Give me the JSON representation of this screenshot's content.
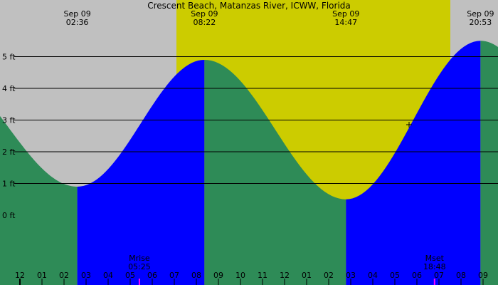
{
  "chart_data": {
    "type": "area",
    "title": "Crescent Beach, Matanzas River, ICWW, Florida",
    "y_unit": "ft",
    "y_ticks": [
      "5 ft",
      "4 ft",
      "3 ft",
      "2 ft",
      "1 ft",
      "0 ft"
    ],
    "x_tick_labels": [
      "1",
      "12",
      "01",
      "02",
      "03",
      "04",
      "05",
      "06",
      "07",
      "08",
      "09",
      "10",
      "11",
      "12",
      "01",
      "02",
      "03",
      "04",
      "05",
      "06",
      "07",
      "08",
      "09"
    ],
    "tide_points": [
      {
        "date": "Sep 09",
        "time": "02:36",
        "type": "low",
        "height_ft": 0.9
      },
      {
        "date": "Sep 09",
        "time": "08:22",
        "type": "high",
        "height_ft": 4.9
      },
      {
        "date": "Sep 09",
        "time": "14:47",
        "type": "low",
        "height_ft": 0.5
      },
      {
        "date": "Sep 09",
        "time": "20:53",
        "type": "high",
        "height_ft": 5.5
      }
    ],
    "peak_labels": [
      {
        "date": "Sep 09",
        "time": "02:36"
      },
      {
        "date": "Sep 09",
        "time": "08:22"
      },
      {
        "date": "Sep 09",
        "time": "14:47"
      },
      {
        "date": "Sep 09",
        "time": "20:53"
      }
    ],
    "moon_events": [
      {
        "label": "Mrise",
        "time": "05:25"
      },
      {
        "label": "Mset",
        "time": "18:48"
      }
    ],
    "daylight": {
      "sunrise_hour": 7.1,
      "sunset_hour": 19.6
    },
    "colors": {
      "night": "#c0c0c0",
      "day": "#cccc00",
      "rising": "#0000ff",
      "falling": "#2e8b57",
      "moon_marker": "#ff00ff",
      "grid": "#000000"
    }
  }
}
